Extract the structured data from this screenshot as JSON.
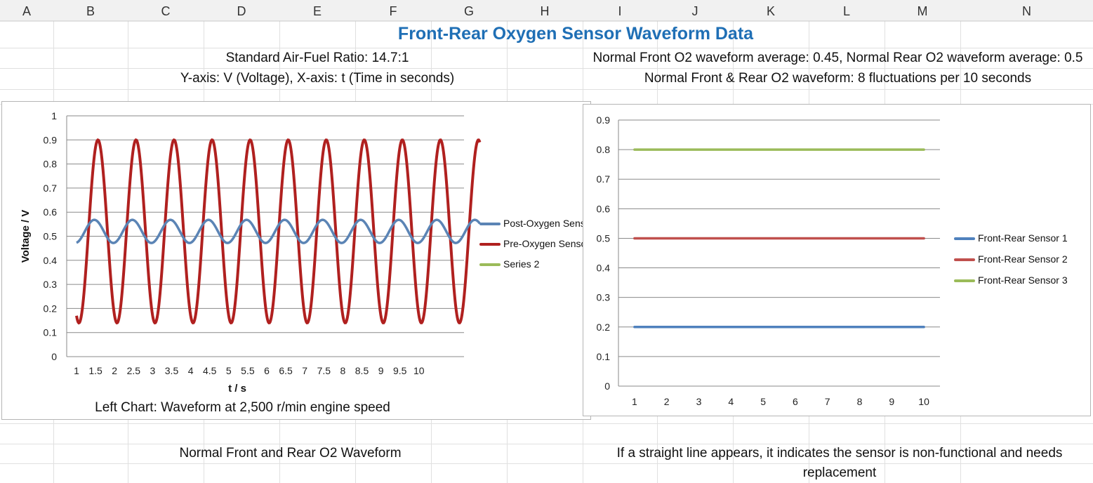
{
  "columns": [
    "A",
    "B",
    "C",
    "D",
    "E",
    "F",
    "G",
    "H",
    "I",
    "J",
    "K",
    "L",
    "M",
    "N"
  ],
  "colors": {
    "title": "#1f6fb5",
    "post_sensor": "#5b84b5",
    "pre_sensor": "#b0201f",
    "series2": "#9bbb59",
    "fr1": "#4f81bd",
    "fr2": "#c0504d",
    "fr3": "#9bbb59"
  },
  "sheet": {
    "title": "Front-Rear Oxygen Sensor Waveform Data",
    "afr": "Standard Air-Fuel Ratio: 14.7:1",
    "axes_note": "Y-axis: V (Voltage), X-axis: t (Time in seconds)",
    "avg_note": "Normal Front O2 waveform average: 0.45, Normal Rear O2 waveform average: 0.5",
    "fluct_note": "Normal Front & Rear O2 waveform: 8 fluctuations per 10 seconds",
    "left_caption": "Left Chart: Waveform at 2,500 r/min engine speed",
    "normal_caption": "Normal Front and Rear O2 Waveform",
    "straight_caption": "If a straight line appears, it indicates the sensor is non-functional and needs replacement"
  },
  "chart_data": [
    {
      "type": "line",
      "title": "",
      "xlabel": "t / s",
      "ylabel": "Voltage / V",
      "x_ticks": [
        "1",
        "1.5",
        "2",
        "2.5",
        "3",
        "3.5",
        "4",
        "4.5",
        "5",
        "5.5",
        "6",
        "6.5",
        "7",
        "7.5",
        "8",
        "8.5",
        "9",
        "9.5",
        "10"
      ],
      "ylim": [
        0,
        1
      ],
      "y_ticks": [
        "0",
        "0.1",
        "0.2",
        "0.3",
        "0.4",
        "0.5",
        "0.6",
        "0.7",
        "0.8",
        "0.9",
        "1"
      ],
      "grid": true,
      "legend_position": "right",
      "series": [
        {
          "name": "Post-Oxygen Sensor",
          "baseline": 0.52,
          "amplitude": 0.048,
          "cycles_per_second": 1.0,
          "x_start": 1.0,
          "x_end": 11.6
        },
        {
          "name": "Pre-Oxygen Sensor",
          "baseline": 0.52,
          "amplitude": 0.38,
          "cycles_per_second": 1.0,
          "x_start": 1.0,
          "x_end": 11.6
        },
        {
          "name": "Series 2",
          "values": []
        }
      ]
    },
    {
      "type": "line",
      "title": "",
      "categories": [
        "1",
        "2",
        "3",
        "4",
        "5",
        "6",
        "7",
        "8",
        "9",
        "10"
      ],
      "ylim": [
        0,
        0.9
      ],
      "y_ticks": [
        "0",
        "0.1",
        "0.2",
        "0.3",
        "0.4",
        "0.5",
        "0.6",
        "0.7",
        "0.8",
        "0.9"
      ],
      "grid": true,
      "legend_position": "right",
      "series": [
        {
          "name": "Front-Rear Sensor 1",
          "values": [
            0.2,
            0.2,
            0.2,
            0.2,
            0.2,
            0.2,
            0.2,
            0.2,
            0.2,
            0.2
          ]
        },
        {
          "name": "Front-Rear Sensor 2",
          "values": [
            0.5,
            0.5,
            0.5,
            0.5,
            0.5,
            0.5,
            0.5,
            0.5,
            0.5,
            0.5
          ]
        },
        {
          "name": "Front-Rear Sensor 3",
          "values": [
            0.8,
            0.8,
            0.8,
            0.8,
            0.8,
            0.8,
            0.8,
            0.8,
            0.8,
            0.8
          ]
        }
      ]
    }
  ]
}
